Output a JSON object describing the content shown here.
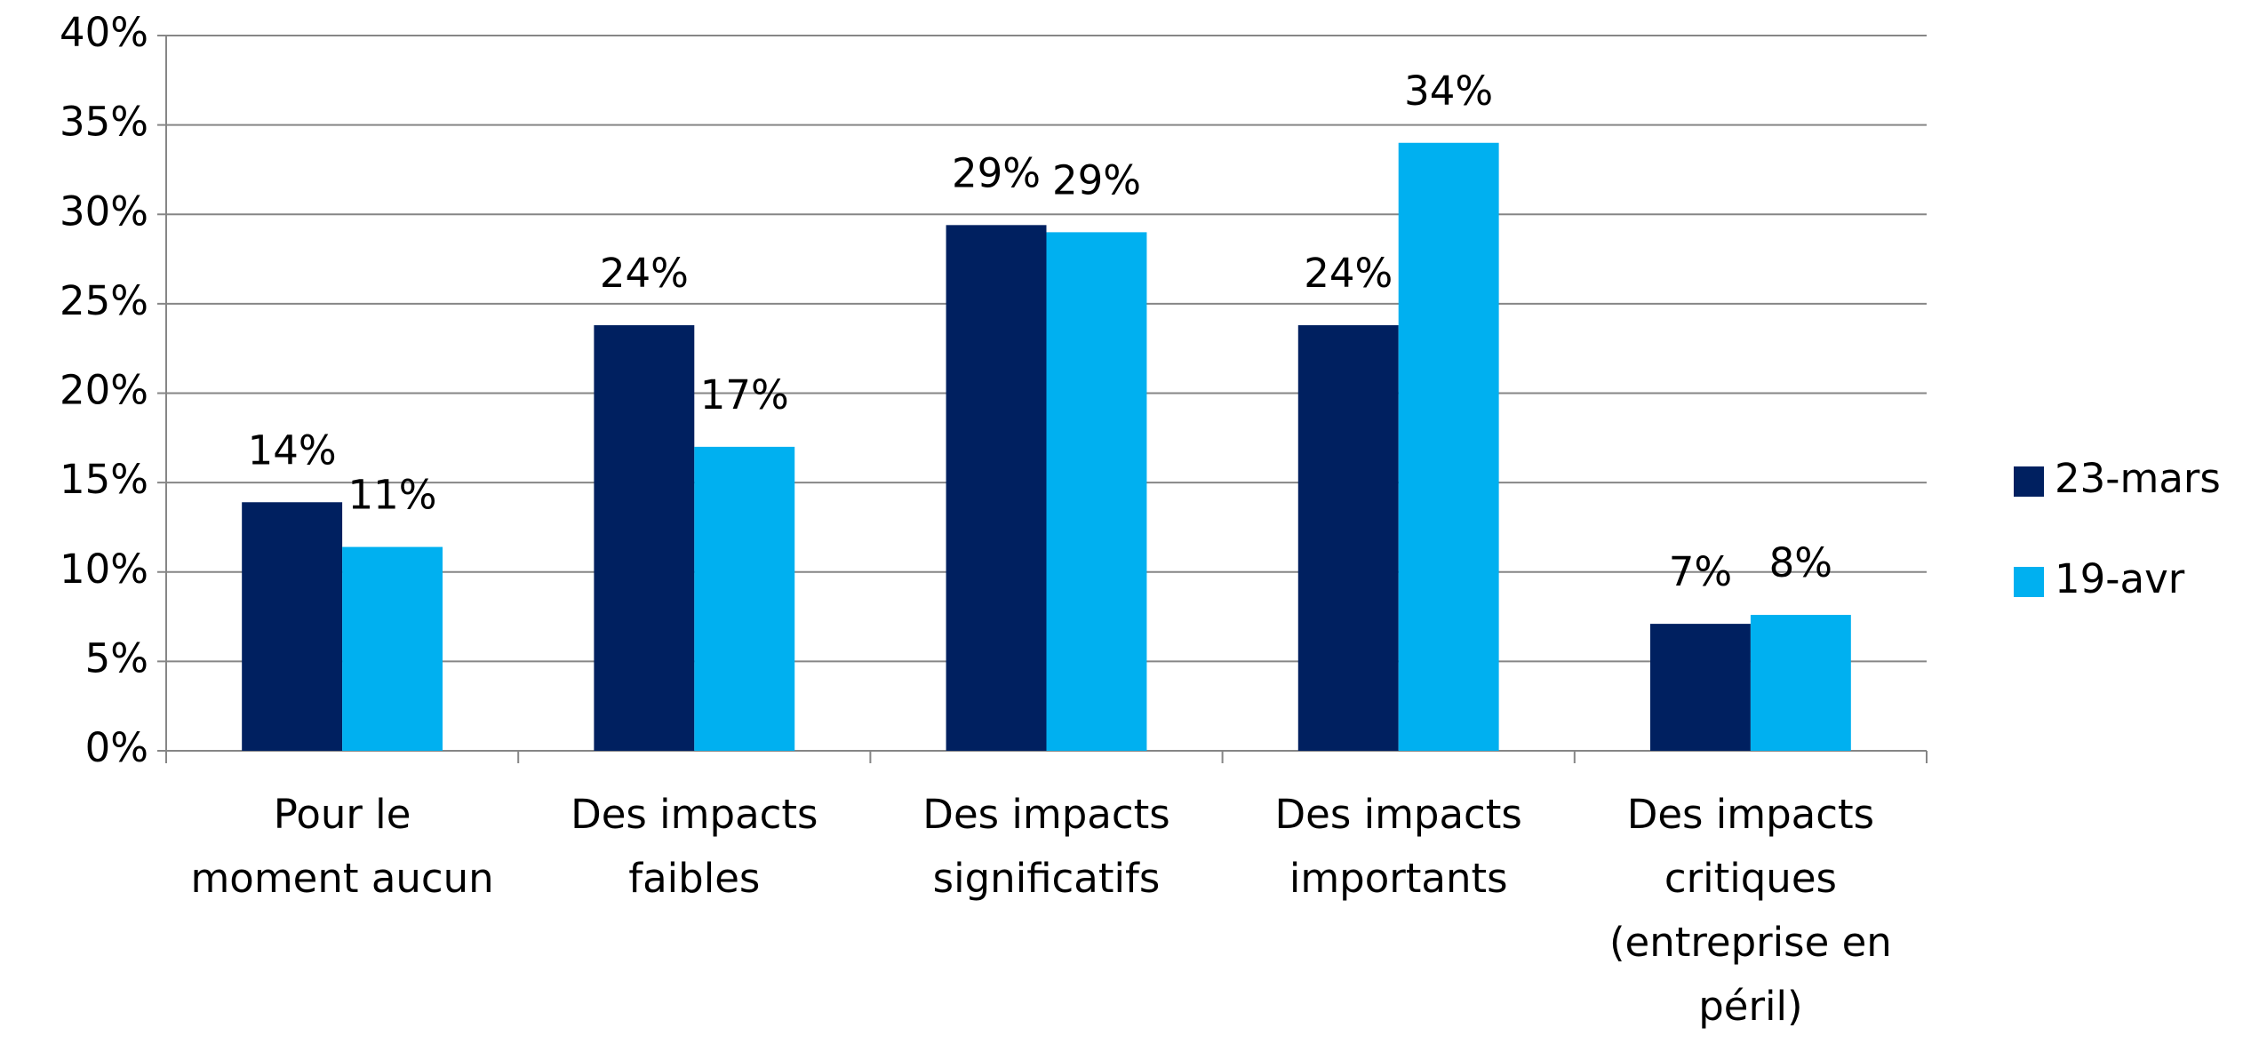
{
  "chart_data": {
    "type": "bar",
    "categories": [
      "Pour le\nmoment aucun",
      "Des impacts\nfaibles",
      "Des impacts\nsignificatifs",
      "Des impacts\nimportants",
      "Des impacts\ncritiques\n(entreprise en\npéril)"
    ],
    "series": [
      {
        "name": "23-mars",
        "color": "#002060",
        "values": [
          13.9,
          23.8,
          29.4,
          23.8,
          7.1
        ],
        "value_labels": [
          "14%",
          "24%",
          "29%",
          "24%",
          "7%"
        ]
      },
      {
        "name": "19-avr",
        "color": "#00b0f0",
        "values": [
          11.4,
          17.0,
          29.0,
          34.0,
          7.6
        ],
        "value_labels": [
          "11%",
          "17%",
          "29%",
          "34%",
          "8%"
        ]
      }
    ],
    "ylim": [
      0,
      40
    ],
    "yticks": [
      {
        "value": 0,
        "label": "0%"
      },
      {
        "value": 5,
        "label": "5%"
      },
      {
        "value": 10,
        "label": "10%"
      },
      {
        "value": 15,
        "label": "15%"
      },
      {
        "value": 20,
        "label": "20%"
      },
      {
        "value": 25,
        "label": "25%"
      },
      {
        "value": 30,
        "label": "30%"
      },
      {
        "value": 35,
        "label": "35%"
      },
      {
        "value": 40,
        "label": "40%"
      }
    ],
    "grid": true,
    "legend": "right"
  }
}
